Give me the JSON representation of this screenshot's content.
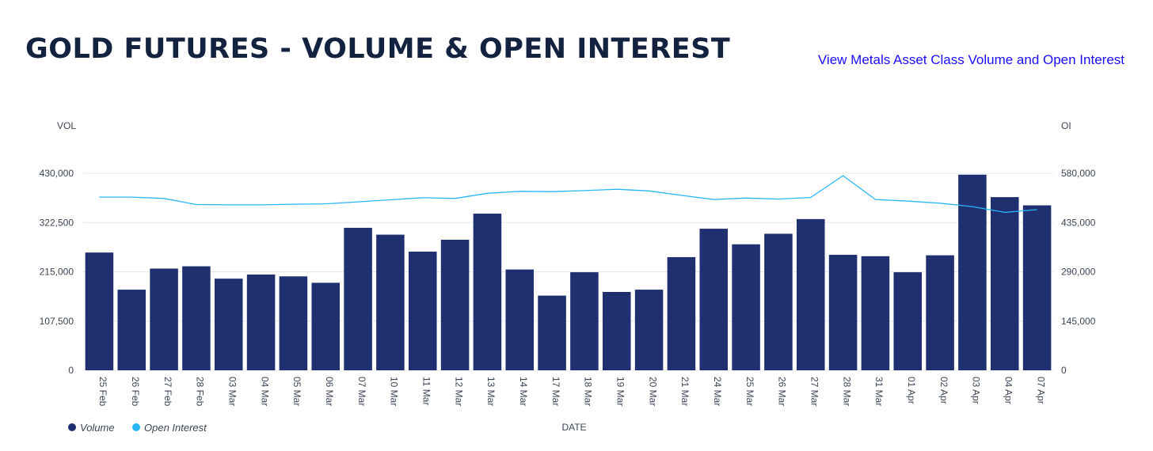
{
  "header": {
    "title": "GOLD FUTURES - VOLUME & OPEN INTEREST",
    "link_label": "View Metals Asset Class Volume and Open Interest"
  },
  "colors": {
    "volume": "#1f2f70",
    "open_interest": "#29b6f6",
    "title": "#13223f",
    "link": "#1a0dff",
    "grid": "#e6e8ec"
  },
  "chart_data": {
    "type": "bar",
    "categories": [
      "25 Feb",
      "26 Feb",
      "27 Feb",
      "28 Feb",
      "03 Mar",
      "04 Mar",
      "05 Mar",
      "06 Mar",
      "07 Mar",
      "10 Mar",
      "11 Mar",
      "12 Mar",
      "13 Mar",
      "14 Mar",
      "17 Mar",
      "18 Mar",
      "19 Mar",
      "20 Mar",
      "21 Mar",
      "24 Mar",
      "25 Mar",
      "26 Mar",
      "27 Mar",
      "28 Mar",
      "31 Mar",
      "01 Apr",
      "02 Apr",
      "03 Apr",
      "04 Apr",
      "07 Apr"
    ],
    "series": [
      {
        "name": "Volume",
        "type": "bar",
        "axis": "left",
        "values": [
          257000,
          176000,
          222000,
          227000,
          200000,
          209000,
          205000,
          191000,
          311000,
          296000,
          259000,
          285000,
          342000,
          220000,
          163000,
          214000,
          171000,
          176000,
          247000,
          309000,
          275000,
          298000,
          330000,
          252000,
          249000,
          214000,
          251000,
          427000,
          378000,
          360000
        ]
      },
      {
        "name": "Open Interest",
        "type": "line",
        "axis": "right",
        "values": [
          510000,
          510000,
          506000,
          488000,
          487000,
          487000,
          489000,
          490000,
          496000,
          502000,
          508000,
          506000,
          521000,
          527000,
          526000,
          529000,
          533000,
          528000,
          515000,
          503000,
          507000,
          504000,
          509000,
          573000,
          503000,
          498000,
          492000,
          482000,
          465000,
          473000
        ]
      }
    ],
    "xlabel": "DATE",
    "ylabel_left": "VOL",
    "ylabel_right": "OI",
    "ylim_left": [
      0,
      430000
    ],
    "ylim_right": [
      0,
      580000
    ],
    "yticks_left": [
      "0",
      "107,500",
      "215,000",
      "322,500",
      "430,000"
    ],
    "yticks_right": [
      "0",
      "145,000",
      "290,000",
      "435,000",
      "580,000"
    ],
    "legend_position": "bottom-left",
    "grid": true
  }
}
